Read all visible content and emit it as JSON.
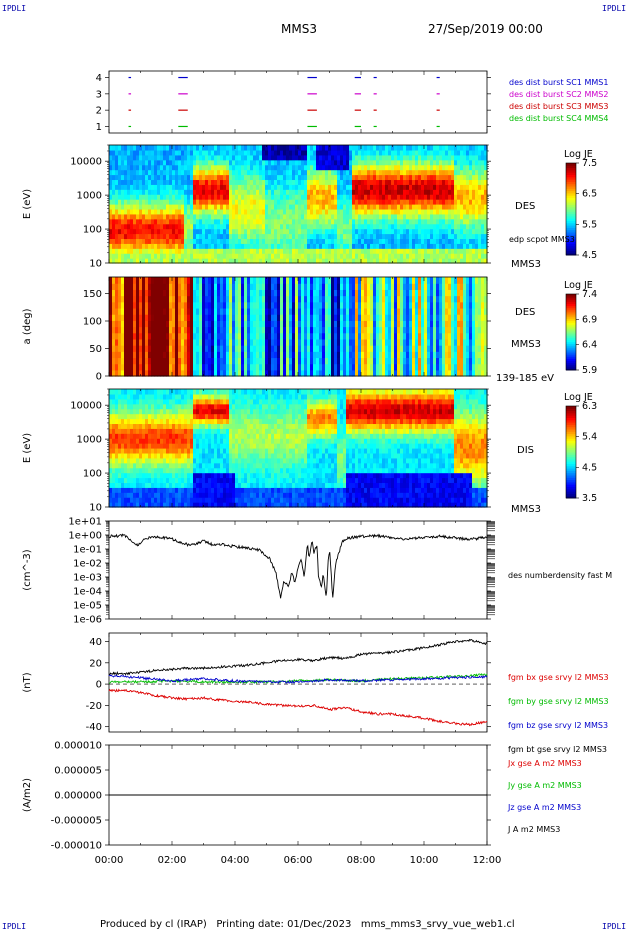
{
  "corner_labels": {
    "top_left": "IPDLI",
    "top_right": "IPDLI",
    "bottom_left": "IPDLI",
    "bottom_right": "IPDLI"
  },
  "header": {
    "spacecraft": "MMS3",
    "date": "27/Sep/2019 00:00"
  },
  "footer": "Produced by cl (IRAP)   Printing date: 01/Dec/2023   mms_mms3_srvy_vue_web1.cl",
  "chart_data": [
    {
      "type": "scatter",
      "id": "availability",
      "title": "",
      "ylabel": "",
      "ylim": [
        0.6,
        4.4
      ],
      "yticks": [
        "1",
        "2",
        "3",
        "4"
      ],
      "series": [
        {
          "name": "des dist burst SC1 MMS1",
          "color": "#0000cc",
          "y": 4,
          "intervals": [
            [
              0.62,
              0.7
            ],
            [
              2.2,
              2.5
            ],
            [
              6.3,
              6.6
            ],
            [
              7.8,
              8.0
            ],
            [
              8.4,
              8.5
            ],
            [
              10.4,
              10.5
            ]
          ]
        },
        {
          "name": "des dist burst SC2 MMS2",
          "color": "#cc00cc",
          "y": 3,
          "intervals": [
            [
              0.62,
              0.7
            ],
            [
              2.2,
              2.5
            ],
            [
              6.3,
              6.6
            ],
            [
              7.8,
              8.0
            ],
            [
              8.4,
              8.5
            ],
            [
              10.4,
              10.5
            ]
          ]
        },
        {
          "name": "des dist burst SC3 MMS3",
          "color": "#cc0000",
          "y": 2,
          "intervals": [
            [
              0.62,
              0.7
            ],
            [
              2.2,
              2.5
            ],
            [
              6.3,
              6.6
            ],
            [
              7.8,
              8.0
            ],
            [
              8.4,
              8.5
            ],
            [
              10.4,
              10.5
            ]
          ]
        },
        {
          "name": "des dist burst SC4 MMS4",
          "color": "#00bb00",
          "y": 1,
          "intervals": [
            [
              0.62,
              0.7
            ],
            [
              2.2,
              2.5
            ],
            [
              6.3,
              6.6
            ],
            [
              7.8,
              8.0
            ],
            [
              8.4,
              8.5
            ],
            [
              10.4,
              10.5
            ]
          ]
        }
      ]
    },
    {
      "type": "heatmap",
      "id": "des_energy",
      "ylabel": "E (eV)",
      "yscale": "log",
      "ylim": [
        10,
        30000
      ],
      "yticks": [
        "10",
        "100",
        "1000",
        "10000"
      ],
      "right_labels": [
        "DES",
        "edp scpot MMS3",
        "MMS3"
      ],
      "colorbar": {
        "title": "Log JE",
        "min": 4.5,
        "max": 7.5,
        "ticks": [
          "7.5",
          "6.5",
          "5.5",
          "4.5"
        ]
      },
      "pattern": "des_energy"
    },
    {
      "type": "heatmap",
      "id": "des_pitch",
      "ylabel": "a (deg)",
      "ylim": [
        0,
        180
      ],
      "yticks": [
        "0",
        "50",
        "100",
        "150"
      ],
      "right_labels": [
        "DES",
        "MMS3",
        "139-185 eV"
      ],
      "colorbar": {
        "title": "Log JE",
        "min": 5.9,
        "max": 7.4,
        "ticks": [
          "7.4",
          "6.9",
          "6.4",
          "5.9"
        ]
      },
      "pattern": "des_pitch"
    },
    {
      "type": "heatmap",
      "id": "dis_energy",
      "ylabel": "E (eV)",
      "yscale": "log",
      "ylim": [
        10,
        30000
      ],
      "yticks": [
        "10",
        "100",
        "1000",
        "10000"
      ],
      "right_labels": [
        "DIS",
        "MMS3"
      ],
      "colorbar": {
        "title": "Log JE",
        "min": 3.5,
        "max": 6.3,
        "ticks": [
          "6.3",
          "5.4",
          "4.5",
          "3.5"
        ]
      },
      "pattern": "dis_energy"
    },
    {
      "type": "line",
      "id": "density",
      "ylabel": "(cm^-3)",
      "yscale": "log",
      "ylim": [
        1e-06,
        10
      ],
      "yticks": [
        "1e-06",
        "1e-05",
        "1e-04",
        "1e-03",
        "1e-02",
        "1e-01",
        "1e+00",
        "1e+01"
      ],
      "series": [
        {
          "name": "des numberdensity fast M",
          "color": "#000000",
          "x": [
            0.0,
            0.5,
            0.9,
            1.2,
            1.6,
            2.0,
            2.5,
            2.8,
            3.0,
            3.3,
            3.6,
            4.0,
            4.4,
            4.8,
            5.1,
            5.3,
            5.45,
            5.55,
            5.7,
            5.8,
            5.9,
            6.0,
            6.1,
            6.2,
            6.3,
            6.35,
            6.45,
            6.5,
            6.6,
            6.65,
            6.75,
            6.8,
            6.9,
            6.95,
            7.0,
            7.05,
            7.1,
            7.2,
            7.4,
            7.6,
            8.0,
            8.5,
            9.0,
            9.5,
            10.0,
            10.5,
            11.0,
            11.5,
            12.0
          ],
          "y": [
            0.8,
            0.9,
            0.2,
            0.6,
            0.7,
            0.5,
            0.2,
            0.25,
            0.4,
            0.2,
            0.2,
            0.15,
            0.12,
            0.08,
            0.02,
            0.002,
            3e-05,
            0.0005,
            0.0002,
            0.002,
            0.0004,
            0.004,
            0.02,
            0.0008,
            0.3,
            0.02,
            0.5,
            0.05,
            0.2,
            0.001,
            0.0002,
            0.002,
            3e-05,
            0.01,
            0.1,
            0.002,
            3e-05,
            0.01,
            0.3,
            0.6,
            0.8,
            0.9,
            0.6,
            0.5,
            0.7,
            0.8,
            0.6,
            0.5,
            0.7
          ]
        }
      ]
    },
    {
      "type": "line",
      "id": "bfield",
      "ylabel": "(nT)",
      "ylim": [
        -45,
        48
      ],
      "yticks": [
        "-40",
        "-20",
        "0",
        "20",
        "40"
      ],
      "series": [
        {
          "name": "fgm bx gse srvy l2 MMS3",
          "color": "#dd0000",
          "x": [
            0,
            0.6,
            1.0,
            1.5,
            2.0,
            2.5,
            3.0,
            3.5,
            4.0,
            4.5,
            5.0,
            5.5,
            6.0,
            6.5,
            7.0,
            7.5,
            8.0,
            8.5,
            9.0,
            9.5,
            10.0,
            10.5,
            11.0,
            11.5,
            12.0
          ],
          "y": [
            -6,
            -6,
            -8,
            -11,
            -13,
            -14,
            -13,
            -15,
            -16,
            -17,
            -19,
            -20,
            -21,
            -20,
            -24,
            -22,
            -26,
            -28,
            -28,
            -30,
            -32,
            -35,
            -37,
            -38,
            -35
          ]
        },
        {
          "name": "fgm by gse srvy l2 MMS3",
          "color": "#00bb00",
          "x": [
            0,
            1,
            2,
            3,
            4,
            5,
            6,
            7,
            8,
            9,
            10,
            11,
            12
          ],
          "y": [
            2,
            2,
            3,
            2,
            2,
            2,
            3,
            4,
            3,
            5,
            6,
            7,
            9
          ]
        },
        {
          "name": "fgm bz gse srvy l2 MMS3",
          "color": "#0000cc",
          "x": [
            0,
            1,
            2,
            3,
            4,
            5,
            6,
            7,
            8,
            9,
            10,
            11,
            12
          ],
          "y": [
            8,
            6,
            3,
            5,
            3,
            2,
            2,
            4,
            3,
            4,
            5,
            6,
            7
          ]
        },
        {
          "name": "fgm bt gse srvy l2 MMS3",
          "color": "#000000",
          "x": [
            0,
            0.6,
            1.0,
            1.5,
            2.0,
            2.5,
            3.0,
            3.5,
            4.0,
            4.5,
            5.0,
            5.5,
            6.0,
            6.5,
            7.0,
            7.5,
            8.0,
            8.5,
            9.0,
            9.5,
            10.0,
            10.5,
            11.0,
            11.5,
            12.0
          ],
          "y": [
            10,
            10,
            11,
            13,
            14,
            15,
            15,
            16,
            17,
            18,
            20,
            22,
            23,
            22,
            25,
            24,
            28,
            29,
            30,
            32,
            34,
            37,
            40,
            41,
            38
          ]
        }
      ],
      "zero_line": true
    },
    {
      "type": "line",
      "id": "current",
      "ylabel": "(A/m2)",
      "ylim": [
        -1e-05,
        1e-05
      ],
      "yticks": [
        "-0.000010",
        "-0.000005",
        "0.000000",
        "0.000005",
        "0.000010"
      ],
      "series": [
        {
          "name": "Jx gse A m2 MMS3",
          "color": "#dd0000",
          "x": [
            0,
            12
          ],
          "y": [
            0,
            0
          ]
        },
        {
          "name": "Jy gse A m2 MMS3",
          "color": "#00bb00",
          "x": [
            0,
            12
          ],
          "y": [
            0,
            0
          ]
        },
        {
          "name": "Jz gse A m2 MMS3",
          "color": "#0000cc",
          "x": [
            0,
            12
          ],
          "y": [
            0,
            0
          ]
        },
        {
          "name": "J A m2 MMS3",
          "color": "#000000",
          "x": [
            0,
            12
          ],
          "y": [
            0,
            0
          ]
        }
      ]
    }
  ],
  "x_axis": {
    "ticks": [
      "00:00",
      "02:00",
      "04:00",
      "06:00",
      "08:00",
      "10:00",
      "12:00"
    ],
    "range_hours": [
      0,
      12
    ]
  }
}
